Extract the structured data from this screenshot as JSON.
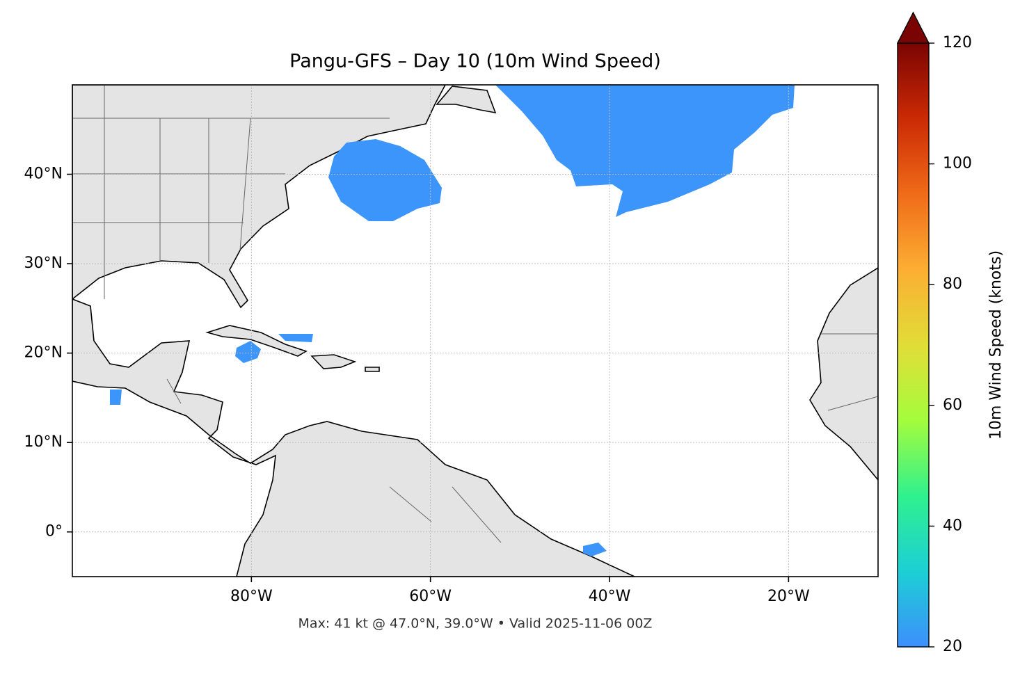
{
  "chart_data": {
    "type": "map",
    "title": "Pangu-GFS – Day 10 (10m Wind Speed)",
    "footer": "Max: 41 kt @ 47.0°N, 39.0°W • Valid 2025-11-06 00Z",
    "xlim": [
      -100,
      -10
    ],
    "ylim": [
      -5,
      50
    ],
    "xticks": [
      {
        "value": -80,
        "label": "80°W"
      },
      {
        "value": -60,
        "label": "60°W"
      },
      {
        "value": -40,
        "label": "40°W"
      },
      {
        "value": -20,
        "label": "20°W"
      }
    ],
    "yticks": [
      {
        "value": 0,
        "label": "0°"
      },
      {
        "value": 10,
        "label": "10°N"
      },
      {
        "value": 20,
        "label": "20°N"
      },
      {
        "value": 30,
        "label": "30°N"
      },
      {
        "value": 40,
        "label": "40°N"
      }
    ],
    "grid": true,
    "colorbar": {
      "label": "10m Wind Speed (knots)",
      "lim": [
        20,
        120
      ],
      "ticks": [
        20,
        40,
        60,
        80,
        100,
        120
      ],
      "extend": "max",
      "colors": [
        "#3d8ffc",
        "#1ccfd5",
        "#2ff18e",
        "#a4fc3c",
        "#e1dd37",
        "#fcae33",
        "#f06b18",
        "#cb2a04",
        "#7a0403"
      ]
    }
  }
}
